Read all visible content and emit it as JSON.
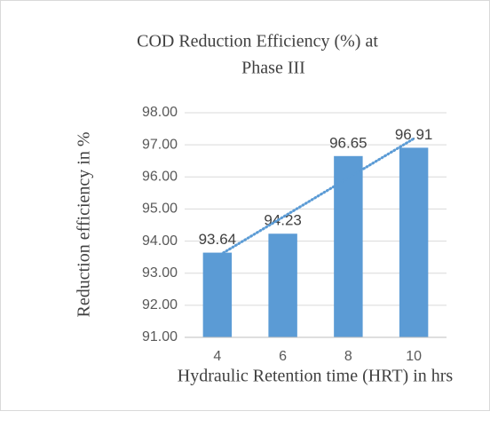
{
  "chart_data": {
    "type": "bar",
    "title": [
      "COD Reduction Efficiency (%) at",
      "Phase III"
    ],
    "x_label": "Hydraulic Retention time (HRT) in hrs",
    "y_label": "Reduction efficiency in %",
    "categories": [
      "4",
      "6",
      "8",
      "10"
    ],
    "values": [
      93.64,
      94.23,
      96.65,
      96.91
    ],
    "color": "#5b9bd5",
    "trendline": "linear",
    "ylim": [
      91,
      98
    ],
    "yticks": [
      {
        "value": 91,
        "label": "91.00"
      },
      {
        "value": 92,
        "label": "92.00"
      },
      {
        "value": 93,
        "label": "93.00"
      },
      {
        "value": 94,
        "label": "94.00"
      },
      {
        "value": 95,
        "label": "95.00"
      },
      {
        "value": 96,
        "label": "96.00"
      },
      {
        "value": 97,
        "label": "97.00"
      },
      {
        "value": 98,
        "label": "98.00"
      }
    ],
    "grid": true
  }
}
